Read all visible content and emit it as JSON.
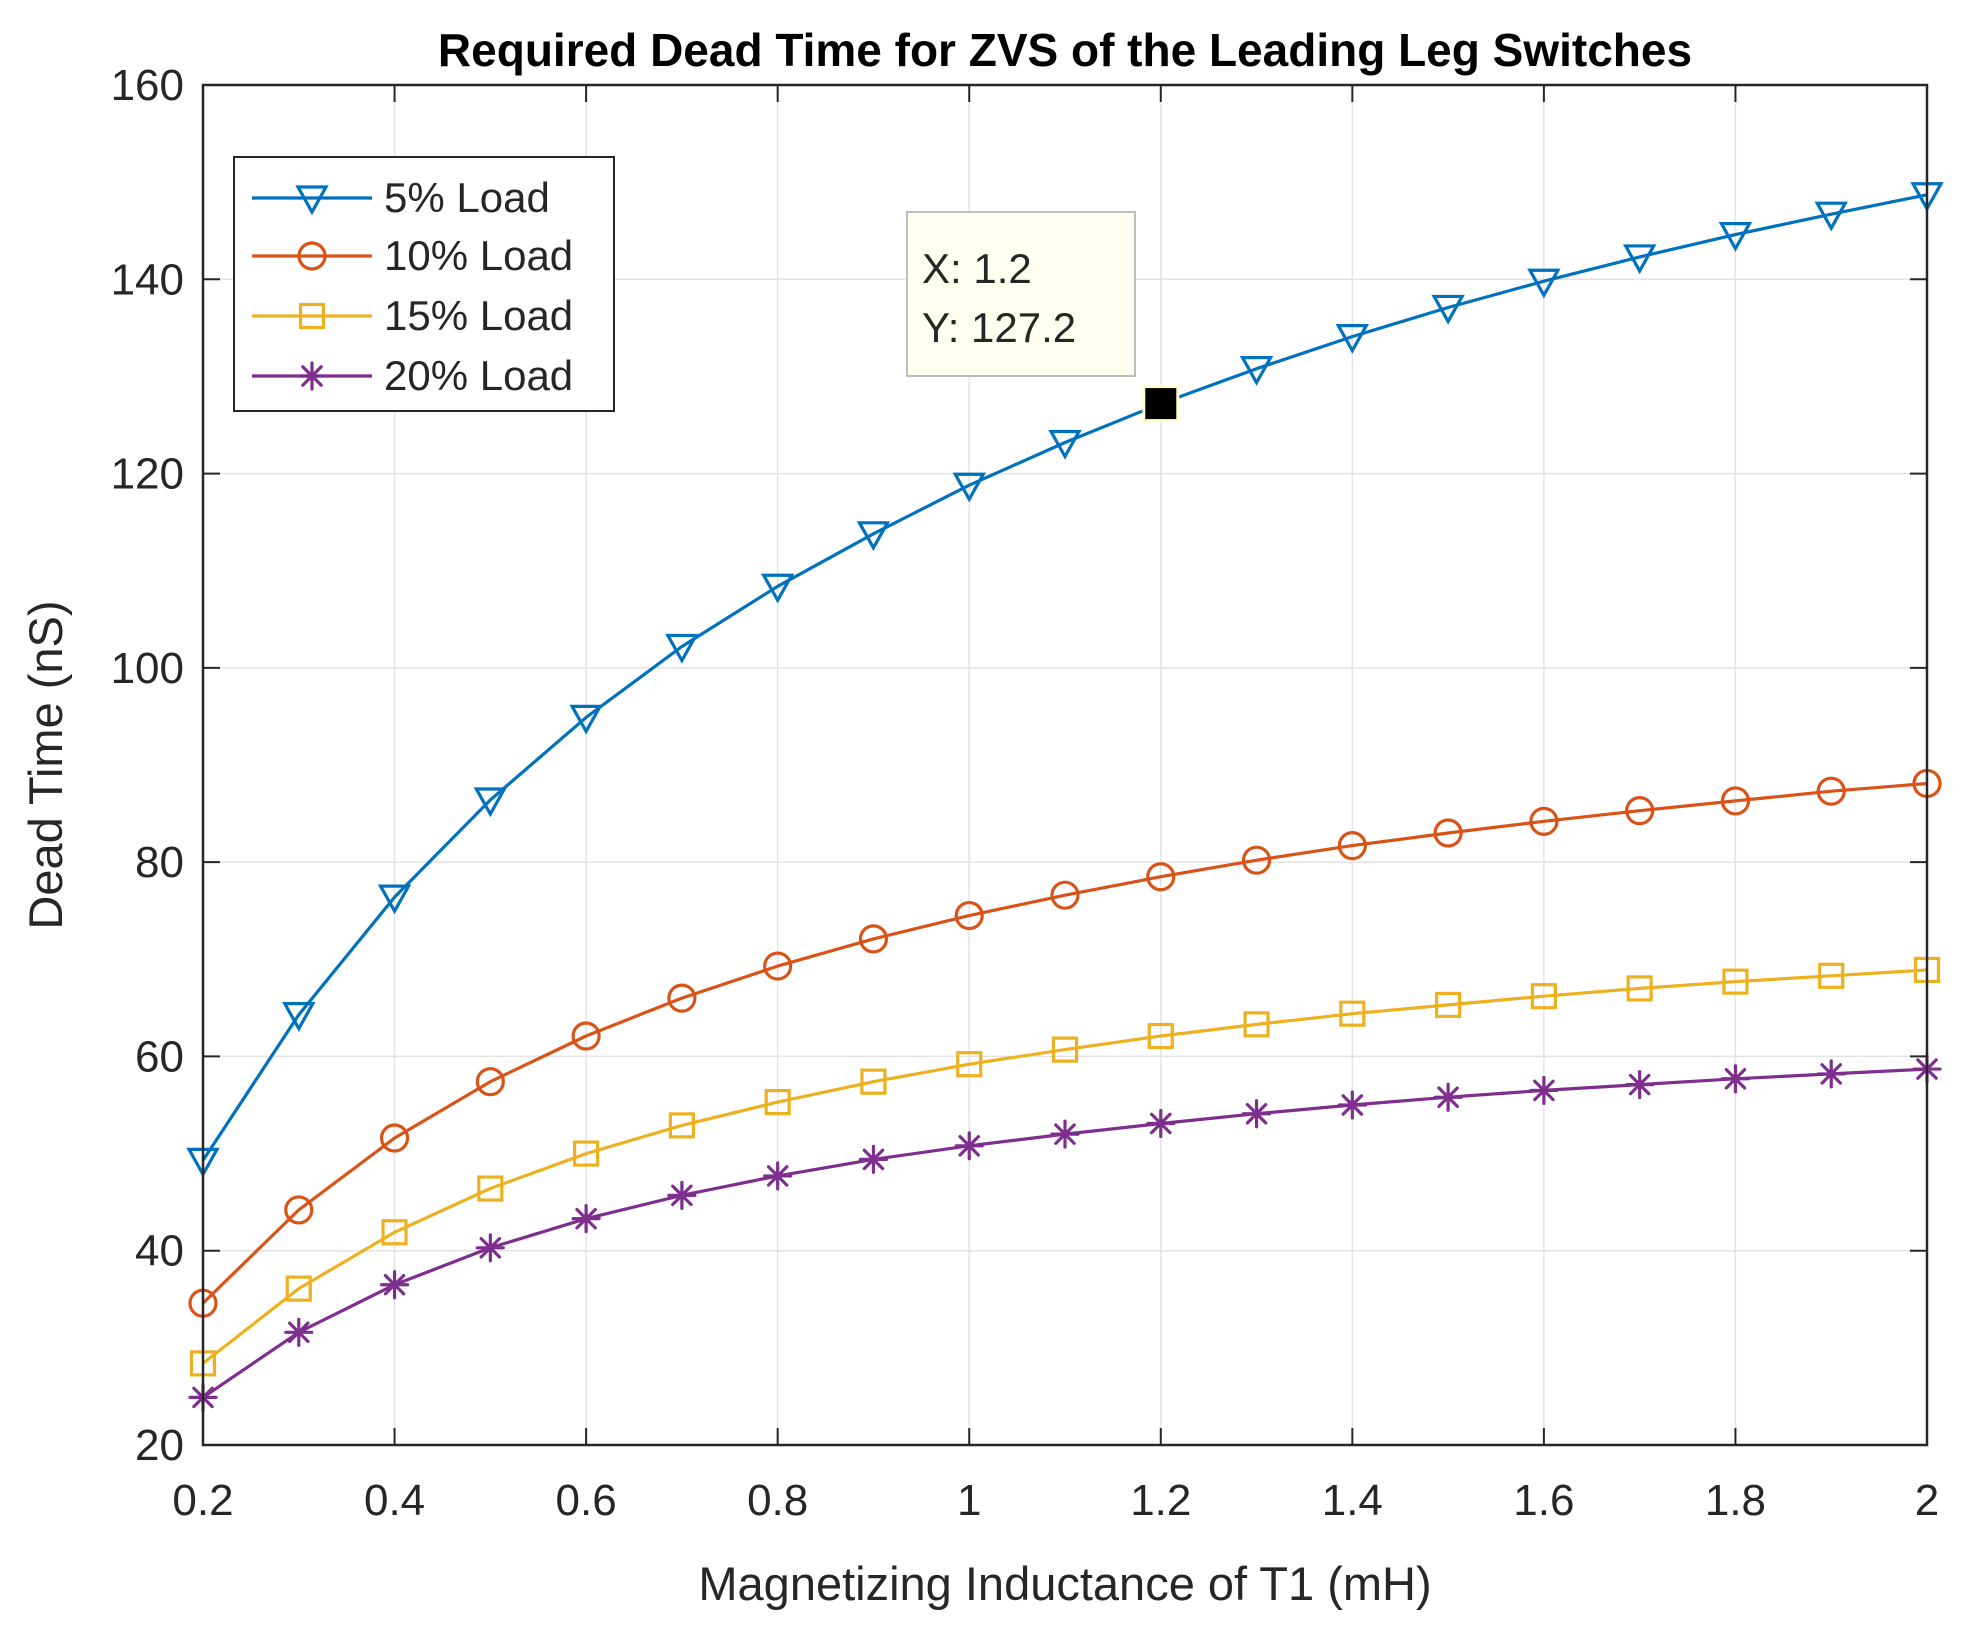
{
  "chart_data": {
    "type": "line",
    "title": "Required Dead Time for ZVS of the Leading Leg Switches",
    "xlabel": "Magnetizing Inductance of T1 (mH)",
    "ylabel": "Dead Time (nS)",
    "xlim": [
      0.2,
      2
    ],
    "ylim": [
      20,
      160
    ],
    "grid": true,
    "x_ticks": [
      0.2,
      0.4,
      0.6,
      0.8,
      1,
      1.2,
      1.4,
      1.6,
      1.8,
      2
    ],
    "x_tick_labels": [
      "0.2",
      "0.4",
      "0.6",
      "0.8",
      "1",
      "1.2",
      "1.4",
      "1.6",
      "1.8",
      "2"
    ],
    "y_ticks": [
      20,
      40,
      60,
      80,
      100,
      120,
      140,
      160
    ],
    "y_tick_labels": [
      "20",
      "40",
      "60",
      "80",
      "100",
      "120",
      "140",
      "160"
    ],
    "legend_position": "top-left",
    "x": [
      0.2,
      0.3,
      0.4,
      0.5,
      0.6,
      0.7,
      0.8,
      0.9,
      1.0,
      1.1,
      1.2,
      1.3,
      1.4,
      1.5,
      1.6,
      1.7,
      1.8,
      1.9,
      2.0
    ],
    "series": [
      {
        "name": "5% Load",
        "color": "#0072BD",
        "marker": "triangle-down",
        "values": [
          49.3,
          64.3,
          76.4,
          86.4,
          94.9,
          102.2,
          108.4,
          113.8,
          118.8,
          123.2,
          127.2,
          130.8,
          134.1,
          137.1,
          139.8,
          142.3,
          144.6,
          146.7,
          148.7
        ]
      },
      {
        "name": "10% Load",
        "color": "#D95319",
        "marker": "circle",
        "values": [
          34.6,
          44.2,
          51.6,
          57.4,
          62.1,
          66.0,
          69.3,
          72.1,
          74.5,
          76.6,
          78.5,
          80.2,
          81.7,
          83.0,
          84.2,
          85.3,
          86.3,
          87.3,
          88.1
        ]
      },
      {
        "name": "15% Load",
        "color": "#EDB120",
        "marker": "square",
        "values": [
          28.4,
          36.1,
          41.9,
          46.4,
          50.0,
          52.9,
          55.3,
          57.4,
          59.2,
          60.7,
          62.1,
          63.3,
          64.4,
          65.3,
          66.2,
          67.0,
          67.7,
          68.3,
          68.9
        ]
      },
      {
        "name": "20% Load",
        "color": "#7E2F8E",
        "marker": "asterisk",
        "values": [
          24.9,
          31.6,
          36.5,
          40.3,
          43.3,
          45.7,
          47.7,
          49.4,
          50.8,
          52.0,
          53.1,
          54.1,
          55.0,
          55.8,
          56.5,
          57.1,
          57.7,
          58.2,
          58.7
        ]
      }
    ],
    "datatip": {
      "x": 1.2,
      "y": 127.2,
      "series": "5% Load",
      "line1": "X: 1.2",
      "line2": "Y: 127.2"
    }
  }
}
